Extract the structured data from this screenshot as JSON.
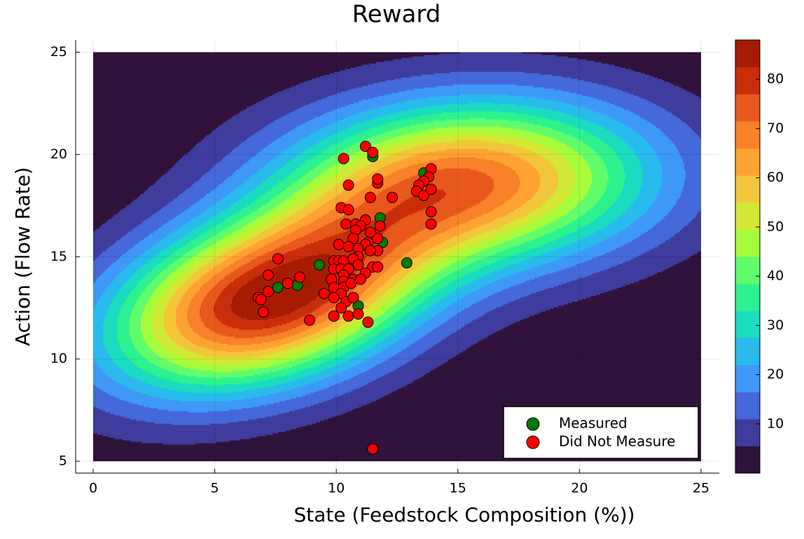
{
  "chart_data": {
    "type": "scatter",
    "title": "Reward",
    "x_label": "State (Feedstock Composition (%))",
    "y_label": "Action (Flow Rate)",
    "xlim": [
      -0.72,
      25.75
    ],
    "ylim": [
      4.42,
      25.6
    ],
    "xticks": [
      0,
      5,
      10,
      15,
      20,
      25
    ],
    "yticks": [
      5,
      10,
      15,
      20,
      25
    ],
    "grid": true,
    "legend": "bottom right",
    "series": [
      {
        "name": "Measured",
        "color": "#007a00",
        "x": [
          13.6,
          11.5,
          11.8,
          11.9,
          9.3,
          7.6,
          8.4,
          12.9,
          10.9
        ],
        "values": [
          19.1,
          19.9,
          16.9,
          15.7,
          14.6,
          13.5,
          13.6,
          14.7,
          12.6
        ]
      },
      {
        "name": "Did Not Measure",
        "color": "#ff0000",
        "x": [
          10.3,
          11.2,
          11.5,
          10.5,
          11.7,
          11.7,
          13.9,
          13.8,
          13.6,
          13.4,
          13.3,
          13.6,
          13.9,
          12.3,
          11.4,
          10.2,
          10.5,
          11.8,
          13.9,
          13.9,
          10.4,
          10.8,
          11.2,
          11.0,
          10.8,
          11.7,
          11.4,
          10.7,
          11.3,
          10.1,
          11.2,
          11.7,
          10.5,
          10.9,
          11.4,
          10.9,
          9.9,
          10.1,
          10.3,
          10.7,
          11.5,
          11.7,
          9.9,
          10.2,
          10.5,
          10.9,
          11.2,
          10.3,
          10.7,
          11.0,
          9.8,
          10.3,
          9.9,
          10.3,
          10.6,
          10.2,
          9.5,
          9.9,
          10.4,
          10.7,
          10.2,
          9.9,
          10.5,
          10.9,
          8.9,
          11.3,
          7.6,
          7.2,
          8.0,
          8.5,
          6.8,
          7.2,
          6.9,
          7.0,
          11.5
        ],
        "values": [
          19.8,
          20.4,
          20.1,
          18.5,
          18.6,
          18.8,
          19.3,
          18.9,
          18.7,
          18.5,
          18.2,
          18.0,
          18.3,
          17.9,
          17.9,
          17.4,
          17.3,
          16.5,
          17.2,
          16.6,
          16.6,
          16.6,
          16.8,
          16.5,
          16.3,
          15.9,
          16.2,
          15.9,
          15.7,
          15.6,
          15.6,
          15.3,
          15.5,
          15.4,
          15.3,
          15.0,
          14.8,
          14.8,
          14.8,
          14.9,
          14.5,
          14.5,
          14.4,
          14.4,
          14.4,
          14.6,
          14.2,
          14.1,
          13.9,
          13.9,
          13.9,
          13.8,
          13.5,
          13.5,
          13.7,
          13.2,
          13.2,
          13.0,
          12.8,
          13.0,
          12.5,
          12.1,
          12.1,
          12.2,
          11.9,
          11.8,
          14.9,
          14.1,
          13.7,
          14.0,
          13.0,
          13.3,
          12.9,
          12.3,
          5.6
        ]
      }
    ],
    "colorbar": {
      "lim": [
        0,
        88
      ],
      "levels": [
        0,
        5.5,
        11,
        16.5,
        22,
        27.5,
        33,
        38.5,
        44,
        49.5,
        55,
        60.5,
        66,
        71.5,
        77,
        82.5,
        88
      ],
      "colors": [
        "#30123b",
        "#3e3c9c",
        "#4568da",
        "#3f98f8",
        "#29bbec",
        "#1bdcc0",
        "#2df18f",
        "#61fc6c",
        "#a4fc3b",
        "#d3e835",
        "#f2c63a",
        "#fea331",
        "#f8812a",
        "#e8581c",
        "#c92e0a",
        "#a71b03",
        "#7a0403"
      ],
      "ticks": [
        10,
        20,
        30,
        40,
        50,
        60,
        70,
        80
      ]
    }
  }
}
